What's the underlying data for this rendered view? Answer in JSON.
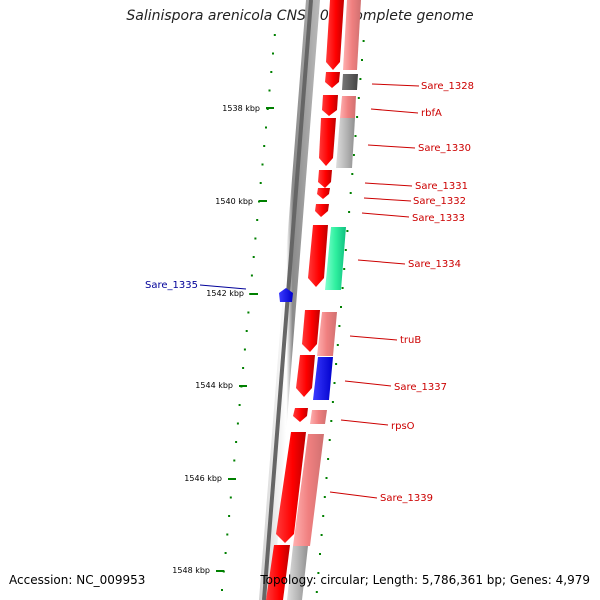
{
  "title": "Salinispora arenicola CNS-205, complete genome",
  "footer": {
    "accession": "Accession: NC_009953",
    "summary": "Topology: circular; Length: 5,786,361 bp; Genes: 4,979"
  },
  "colors": {
    "forward_strong": "#ff0000",
    "forward_light": "#f08080",
    "grey": "#b0b0b0",
    "dark_grey": "#555555",
    "green": "#30f0a0",
    "blue": "#0000ff",
    "tick": "#008000",
    "axis": "#777777",
    "label_red": "#cc0000",
    "label_blue": "#000099"
  },
  "kbp_ticks": [
    {
      "label": "1538 kbp"
    },
    {
      "label": "1540 kbp"
    },
    {
      "label": "1542 kbp"
    },
    {
      "label": "1544 kbp"
    },
    {
      "label": "1546 kbp"
    },
    {
      "label": "1548 kbp"
    }
  ],
  "gene_labels": [
    {
      "name": "Sare_1328",
      "color": "label_red"
    },
    {
      "name": "rbfA",
      "color": "label_red"
    },
    {
      "name": "Sare_1330",
      "color": "label_red"
    },
    {
      "name": "Sare_1331",
      "color": "label_red"
    },
    {
      "name": "Sare_1332",
      "color": "label_red"
    },
    {
      "name": "Sare_1333",
      "color": "label_red"
    },
    {
      "name": "Sare_1334",
      "color": "label_red"
    },
    {
      "name": "Sare_1335",
      "color": "label_blue"
    },
    {
      "name": "truB",
      "color": "label_red"
    },
    {
      "name": "Sare_1337",
      "color": "label_red"
    },
    {
      "name": "rpsO",
      "color": "label_red"
    },
    {
      "name": "Sare_1339",
      "color": "label_red"
    }
  ]
}
